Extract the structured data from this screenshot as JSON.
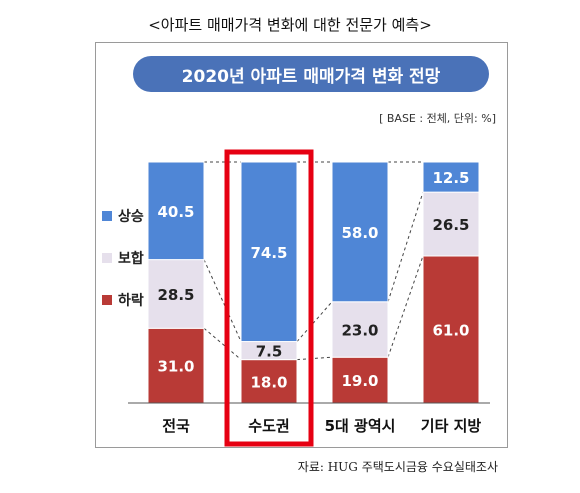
{
  "caption": "<아파트 매매가격 변화에 대한 전문가 예측>",
  "header": {
    "title": "2020년 아파트 매매가격 변화 전망"
  },
  "base_note": "[ BASE : 전체, 단위: %]",
  "source": "자료: HUG 주택도시금융 수요실태조사",
  "chart_data": {
    "type": "bar",
    "stacked": true,
    "percent": true,
    "categories": [
      "전국",
      "수도권",
      "5대 광역시",
      "기타 지방"
    ],
    "series": [
      {
        "name": "하락",
        "color": "#b93a36",
        "values": [
          31.0,
          18.0,
          19.0,
          61.0
        ]
      },
      {
        "name": "보합",
        "color": "#e6e0ec",
        "values": [
          28.5,
          7.5,
          23.0,
          26.5
        ]
      },
      {
        "name": "상승",
        "color": "#4f86d6",
        "values": [
          40.5,
          74.5,
          58.0,
          12.5
        ]
      }
    ],
    "legend_order": [
      "상승",
      "보합",
      "하락"
    ],
    "legend_position": "left",
    "highlight_category": "수도권",
    "highlight_color": "#e60012",
    "label_colors": {
      "하락": "#ffffff",
      "보합": "#222222",
      "상승": "#ffffff"
    },
    "ylim": [
      0,
      100
    ],
    "grid": false
  }
}
